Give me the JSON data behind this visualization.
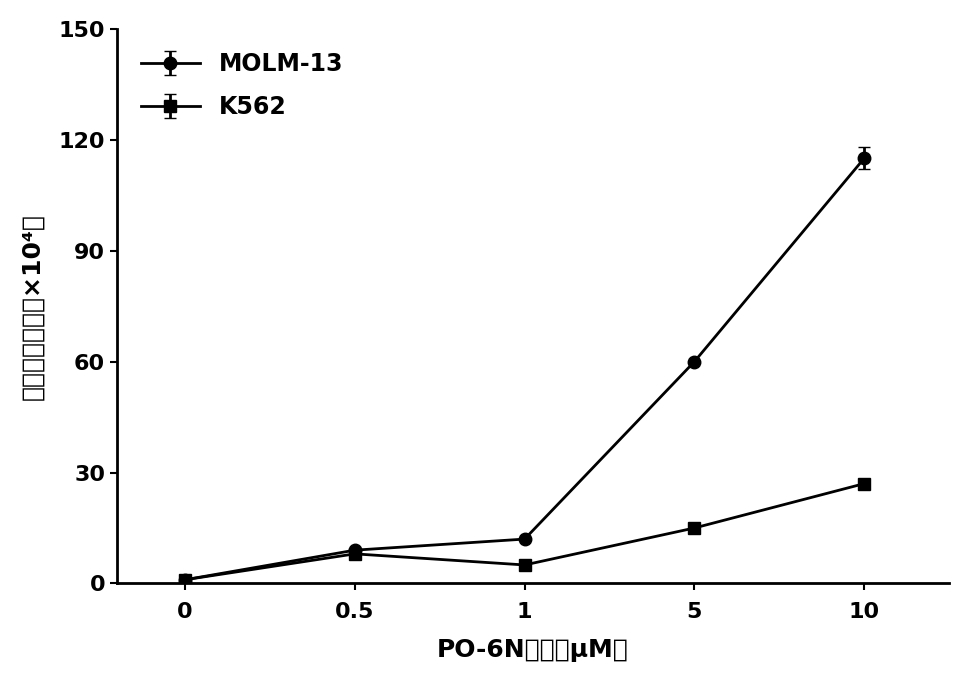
{
  "x_positions": [
    0,
    1,
    2,
    3,
    4
  ],
  "x_labels": [
    "0",
    "0.5",
    "1",
    "5",
    "10"
  ],
  "molm13_y": [
    1,
    9,
    12,
    60,
    115
  ],
  "molm13_yerr": [
    0,
    0,
    0,
    0,
    3
  ],
  "k562_y": [
    1,
    8,
    5,
    15,
    27
  ],
  "k562_yerr": [
    0,
    0,
    0,
    0,
    1
  ],
  "xlabel": "PO-6N浓度（μM）",
  "ylabel": "平均荧光强度（×10⁴）",
  "ylim": [
    0,
    150
  ],
  "yticks": [
    0,
    30,
    60,
    90,
    120,
    150
  ],
  "legend_molm13": "MOLM-13",
  "legend_k562": "K562",
  "line_color": "#000000",
  "bg_color": "#ffffff",
  "marker_circle": "o",
  "marker_square": "s",
  "linewidth": 2.0,
  "markersize": 9,
  "capsize": 4,
  "label_fontsize": 18,
  "tick_fontsize": 16,
  "legend_fontsize": 17
}
